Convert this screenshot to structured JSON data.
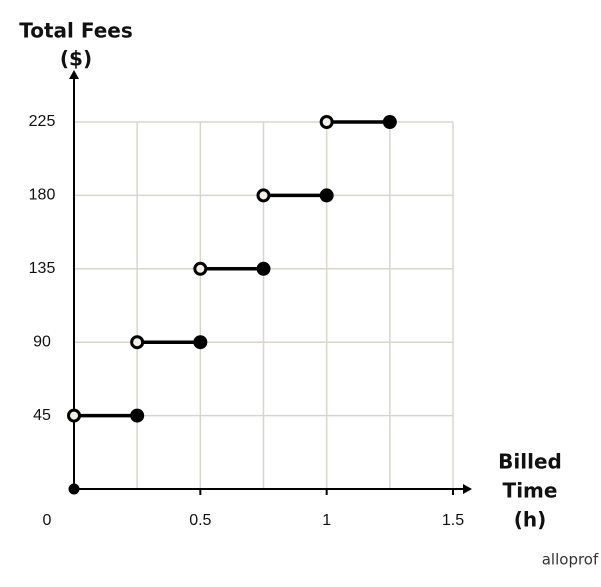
{
  "chart_data": {
    "type": "step",
    "y_title_lines": [
      "Total Fees",
      "($)"
    ],
    "x_title_lines": [
      "Billed",
      "Time",
      "(h)"
    ],
    "watermark": "alloprof",
    "x_start": [
      0,
      0.25,
      0.5,
      0.75,
      1
    ],
    "x_end": [
      0.25,
      0.5,
      0.75,
      1,
      1.25
    ],
    "values": [
      45,
      90,
      135,
      180,
      225
    ],
    "open_end": "left",
    "origin_point": {
      "x": 0,
      "y": 0
    },
    "color": "#000000",
    "open_fill": "#f3efe6",
    "xlim": [
      0,
      1.5
    ],
    "ylim": [
      0,
      225
    ],
    "xticks": [
      0,
      0.5,
      1,
      1.5
    ],
    "xgrid": [
      0.25,
      0.5,
      0.75,
      1,
      1.25,
      1.5
    ],
    "yticks": [
      45,
      90,
      135,
      180,
      225
    ],
    "grid": true,
    "grid_color": "#d8d6cc"
  }
}
